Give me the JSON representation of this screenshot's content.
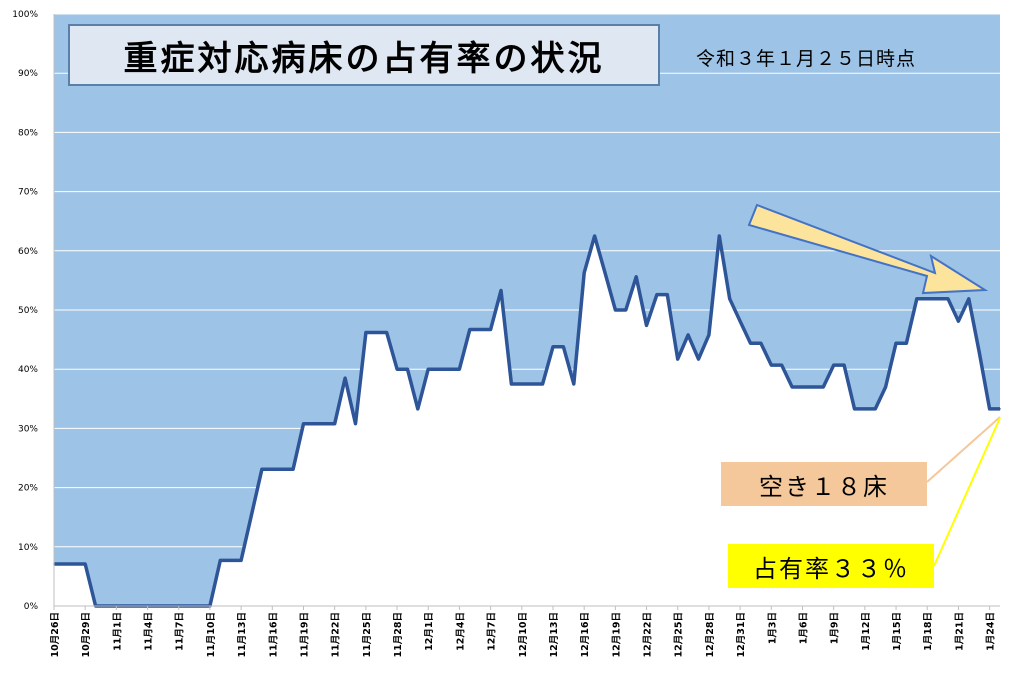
{
  "chart_title": "重症対応病床の占有率の状況",
  "as_of": "令和３年１月２５日時点",
  "annotations": {
    "vacant_beds": "空き１８床",
    "occupancy_rate": "占有率３３％"
  },
  "colors": {
    "area_fill": "#9dc3e6",
    "line": "#2e5597",
    "arrow_fill": "#fce49c",
    "arrow_stroke": "#4472c4",
    "vacant_box": "#f4c89a",
    "occupancy_box": "#ffff00",
    "vacant_leader": "#f4c89a",
    "occupancy_leader": "#ffff00"
  },
  "chart_data": {
    "type": "area",
    "ylim": [
      0,
      100
    ],
    "y_ticks": [
      "0%",
      "10%",
      "20%",
      "30%",
      "40%",
      "50%",
      "60%",
      "70%",
      "80%",
      "90%",
      "100%"
    ],
    "x_tick_labels": [
      "10月26日",
      "10月29日",
      "11月1日",
      "11月4日",
      "11月7日",
      "11月10日",
      "11月13日",
      "11月16日",
      "11月19日",
      "11月22日",
      "11月25日",
      "11月28日",
      "12月1日",
      "12月4日",
      "12月7日",
      "12月10日",
      "12月13日",
      "12月16日",
      "12月19日",
      "12月22日",
      "12月25日",
      "12月28日",
      "12月31日",
      "1月3日",
      "1月6日",
      "1月9日",
      "1月12日",
      "1月15日",
      "1月18日",
      "1月21日",
      "1月24日"
    ],
    "x_tick_interval_days": 3,
    "series": [
      {
        "values": [
          7.1,
          7.1,
          7.1,
          7.1,
          0,
          0,
          0,
          0,
          0,
          0,
          0,
          0,
          0,
          0,
          0,
          0,
          7.7,
          7.7,
          7.7,
          15.4,
          23.1,
          23.1,
          23.1,
          23.1,
          30.8,
          30.8,
          30.8,
          30.8,
          38.5,
          30.8,
          46.2,
          46.2,
          46.2,
          40.0,
          40.0,
          33.3,
          40.0,
          40.0,
          40.0,
          40.0,
          46.7,
          46.7,
          46.7,
          53.3,
          37.5,
          37.5,
          37.5,
          37.5,
          43.8,
          43.8,
          37.5,
          56.3,
          62.5,
          56.3,
          50.0,
          50.0,
          55.6,
          47.4,
          52.6,
          52.6,
          41.7,
          45.8,
          41.7,
          45.8,
          62.5,
          51.9,
          48.1,
          44.4,
          44.4,
          40.7,
          40.7,
          37.0,
          37.0,
          37.0,
          37.0,
          40.7,
          40.7,
          33.3,
          33.3,
          33.3,
          37.0,
          44.4,
          44.4,
          51.9,
          51.9,
          51.9,
          51.9,
          48.1,
          51.9,
          42.9,
          33.3,
          33.3
        ]
      }
    ]
  }
}
